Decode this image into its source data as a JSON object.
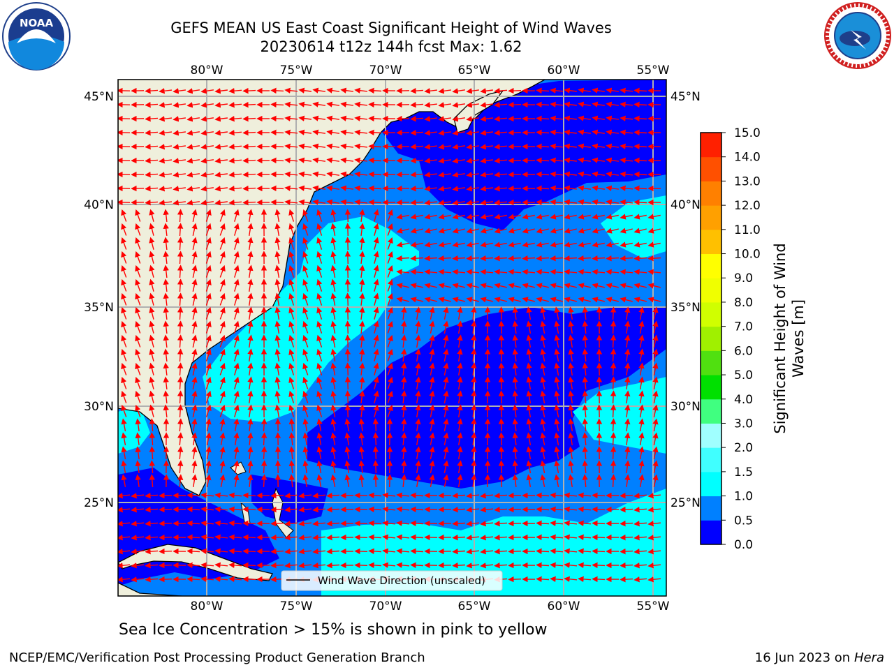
{
  "title_line1": "GEFS MEAN US East Coast Significant Height of Wind Waves",
  "title_line2": "20230614 t12z 144h fcst   Max: 1.62",
  "logos": {
    "left": "NOAA",
    "right": "NATIONAL WEATHER SERVICE"
  },
  "map": {
    "lon_labels": [
      "80°W",
      "75°W",
      "70°W",
      "65°W",
      "60°W",
      "55°W"
    ],
    "lat_labels": [
      "45°N",
      "40°N",
      "35°N",
      "30°N",
      "25°N"
    ],
    "legend_text": "Wind Wave Direction (unscaled)"
  },
  "colorbar": {
    "label_line1": "Significant Height of Wind",
    "label_line2": "Waves [m]",
    "ticks": [
      "0.0",
      "0.5",
      "1.0",
      "1.5",
      "2.0",
      "3.0",
      "4.0",
      "5.0",
      "6.0",
      "7.0",
      "8.0",
      "9.0",
      "10.0",
      "11.0",
      "12.0",
      "13.0",
      "14.0",
      "15.0"
    ],
    "colors": [
      "#0000ff",
      "#0080ff",
      "#00ffff",
      "#40ffff",
      "#a0ffff",
      "#40ff80",
      "#00e000",
      "#50e010",
      "#a0f000",
      "#d0ff00",
      "#f0ff00",
      "#ffff00",
      "#ffc000",
      "#ffa000",
      "#ff8000",
      "#ff5000",
      "#ff2000"
    ]
  },
  "caption": "Sea Ice Concentration > 15% is shown in pink to yellow",
  "footer_left": "NCEP/EMC/Verification Post Processing Product Generation Branch",
  "footer_right_date": "16 Jun 2023 on",
  "footer_right_host": "Hera"
}
